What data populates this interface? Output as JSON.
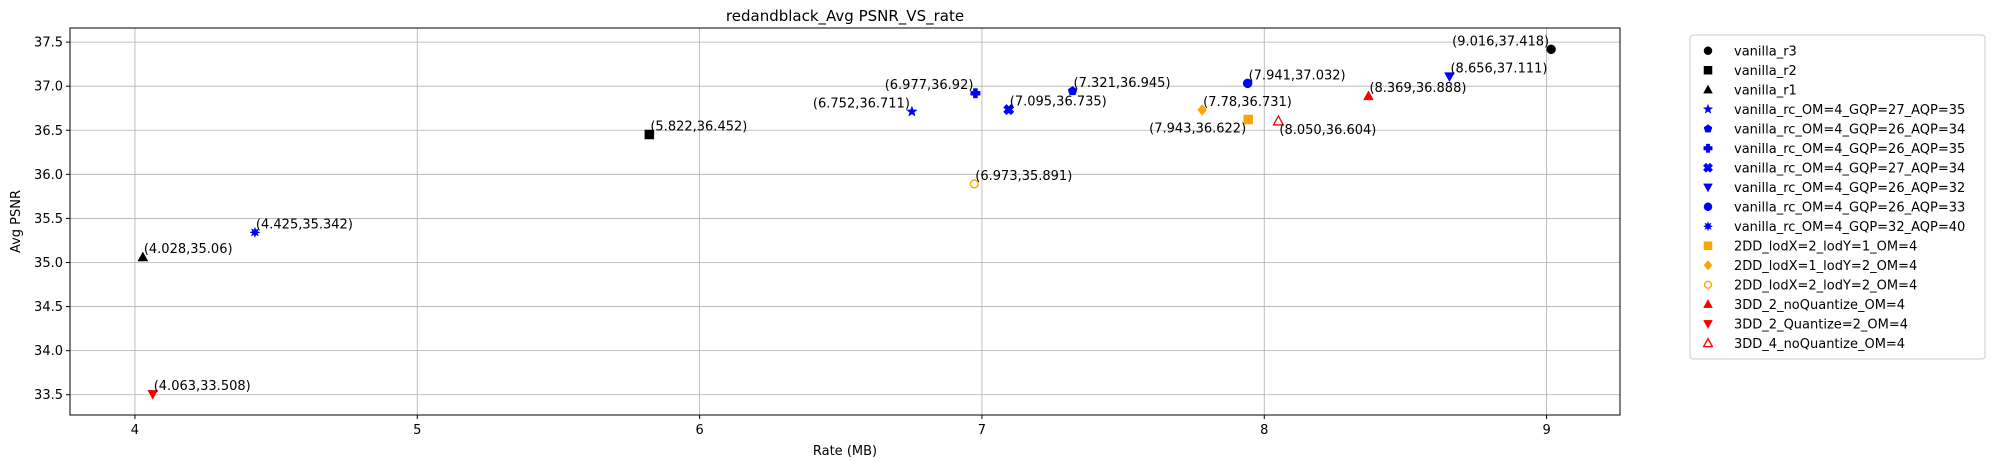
{
  "chart_data": {
    "type": "scatter",
    "title": "redandblack_Avg PSNR_VS_rate",
    "xlabel": "Rate (MB)",
    "ylabel": "Avg PSNR",
    "xlim": [
      3.77,
      9.26
    ],
    "ylim": [
      33.27,
      37.66
    ],
    "xticks": [
      4,
      5,
      6,
      7,
      8,
      9
    ],
    "yticks": [
      33.5,
      34.0,
      34.5,
      35.0,
      35.5,
      36.0,
      36.5,
      37.0,
      37.5
    ],
    "grid": true,
    "legend_position": "outside-right",
    "series": [
      {
        "name": "vanilla_r3",
        "marker": "circle",
        "color": "#000000",
        "filled": true,
        "x": 9.016,
        "y": 37.418,
        "label": "(9.016,37.418)",
        "label_pos": "upper-left"
      },
      {
        "name": "vanilla_r2",
        "marker": "square",
        "color": "#000000",
        "filled": true,
        "x": 5.822,
        "y": 36.452,
        "label": "(5.822,36.452)",
        "label_pos": "upper-right"
      },
      {
        "name": "vanilla_r1",
        "marker": "triangle-up",
        "color": "#000000",
        "filled": true,
        "x": 4.028,
        "y": 35.06,
        "label": "(4.028,35.06)",
        "label_pos": "upper-right"
      },
      {
        "name": "vanilla_rc_OM=4_GQP=27_AQP=35",
        "marker": "star",
        "color": "#0000ff",
        "filled": true,
        "x": 6.752,
        "y": 36.711,
        "label": "(6.752,36.711)",
        "label_pos": "upper-left"
      },
      {
        "name": "vanilla_rc_OM=4_GQP=26_AQP=34",
        "marker": "pentagon",
        "color": "#0000ff",
        "filled": true,
        "x": 7.321,
        "y": 36.945,
        "label": "(7.321,36.945)",
        "label_pos": "upper-right"
      },
      {
        "name": "vanilla_rc_OM=4_GQP=26_AQP=35",
        "marker": "plus",
        "color": "#0000ff",
        "filled": true,
        "x": 6.977,
        "y": 36.92,
        "label": "(6.977,36.92)",
        "label_pos": "upper-left"
      },
      {
        "name": "vanilla_rc_OM=4_GQP=27_AQP=34",
        "marker": "x",
        "color": "#0000ff",
        "filled": true,
        "x": 7.095,
        "y": 36.735,
        "label": "(7.095,36.735)",
        "label_pos": "upper-right"
      },
      {
        "name": "vanilla_rc_OM=4_GQP=26_AQP=32",
        "marker": "triangle-down",
        "color": "#0000ff",
        "filled": true,
        "x": 8.656,
        "y": 37.111,
        "label": "(8.656,37.111)",
        "label_pos": "upper-right"
      },
      {
        "name": "vanilla_rc_OM=4_GQP=26_AQP=33",
        "marker": "circle",
        "color": "#0000ff",
        "filled": true,
        "x": 7.941,
        "y": 37.032,
        "label": "(7.941,37.032)",
        "label_pos": "upper-right"
      },
      {
        "name": "vanilla_rc_OM=4_GQP=32_AQP=40",
        "marker": "asterisk",
        "color": "#0000ff",
        "filled": true,
        "x": 4.425,
        "y": 35.342,
        "label": "(4.425,35.342)",
        "label_pos": "upper-right"
      },
      {
        "name": "2DD_lodX=2_lodY=1_OM=4",
        "marker": "square",
        "color": "#ffa500",
        "filled": true,
        "x": 7.943,
        "y": 36.622,
        "label": "(7.943,36.622)",
        "label_pos": "lower-left"
      },
      {
        "name": "2DD_lodX=1_lodY=2_OM=4",
        "marker": "diamond",
        "color": "#ffa500",
        "filled": true,
        "x": 7.78,
        "y": 36.731,
        "label": "(7.78,36.731)",
        "label_pos": "upper-right"
      },
      {
        "name": "2DD_lodX=2_lodY=2_OM=4",
        "marker": "octagon-hollow",
        "color": "#ffa500",
        "filled": false,
        "x": 6.973,
        "y": 35.891,
        "label": "(6.973,35.891)",
        "label_pos": "upper-right"
      },
      {
        "name": "3DD_2_noQuantize_OM=4",
        "marker": "triangle-up",
        "color": "#ff0000",
        "filled": true,
        "x": 8.369,
        "y": 36.888,
        "label": "(8.369,36.888)",
        "label_pos": "upper-right"
      },
      {
        "name": "3DD_2_Quantize=2_OM=4",
        "marker": "triangle-down",
        "color": "#ff0000",
        "filled": true,
        "x": 4.063,
        "y": 33.508,
        "label": "(4.063,33.508)",
        "label_pos": "upper-right"
      },
      {
        "name": "3DD_4_noQuantize_OM=4",
        "marker": "triangle-up",
        "color": "#ff0000",
        "filled": false,
        "x": 8.05,
        "y": 36.604,
        "label": "(8.050,36.604)",
        "label_pos": "lower-right"
      }
    ]
  }
}
